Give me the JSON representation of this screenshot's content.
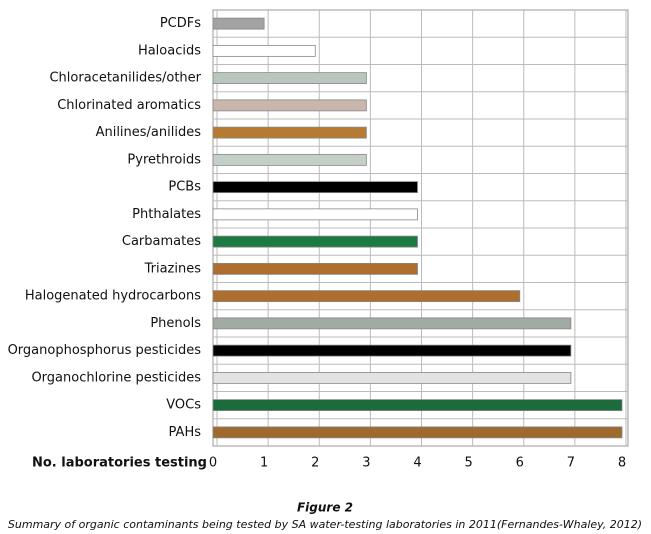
{
  "chart_data": {
    "type": "bar",
    "orientation": "horizontal",
    "categories": [
      "PCDFs",
      "Haloacids",
      "Chloracetanilides/other",
      "Chlorinated aromatics",
      "Anilines/anilides",
      "Pyrethroids",
      "PCBs",
      "Phthalates",
      "Carbamates",
      "Triazines",
      "Halogenated hydrocarbons",
      "Phenols",
      "Organophosphorus pesticides",
      "Organochlorine pesticides",
      "VOCs",
      "PAHs"
    ],
    "values": [
      1,
      2,
      3,
      3,
      3,
      3,
      4,
      4,
      4,
      4,
      6,
      7,
      7,
      7,
      8,
      8
    ],
    "colors": [
      "#a3a3a3",
      "#ffffff",
      "#b9c6be",
      "#cbb6ae",
      "#b77a32",
      "#c3cfc7",
      "#000000",
      "#ffffff",
      "#1d7a43",
      "#ae6e2e",
      "#ae6e2e",
      "#a1aaa3",
      "#000000",
      "#e2e2e2",
      "#1b6b3c",
      "#a06a2f"
    ],
    "xlim": [
      0,
      8
    ],
    "xticks": [
      0,
      1,
      2,
      3,
      4,
      5,
      6,
      7,
      8
    ],
    "grid": true,
    "xlabel": "No. laboratories testing",
    "caption_label": "Figure 2",
    "caption": "Summary of organic contaminants being tested by SA water-testing laboratories in 2011(Fernandes-Whaley, 2012)"
  }
}
